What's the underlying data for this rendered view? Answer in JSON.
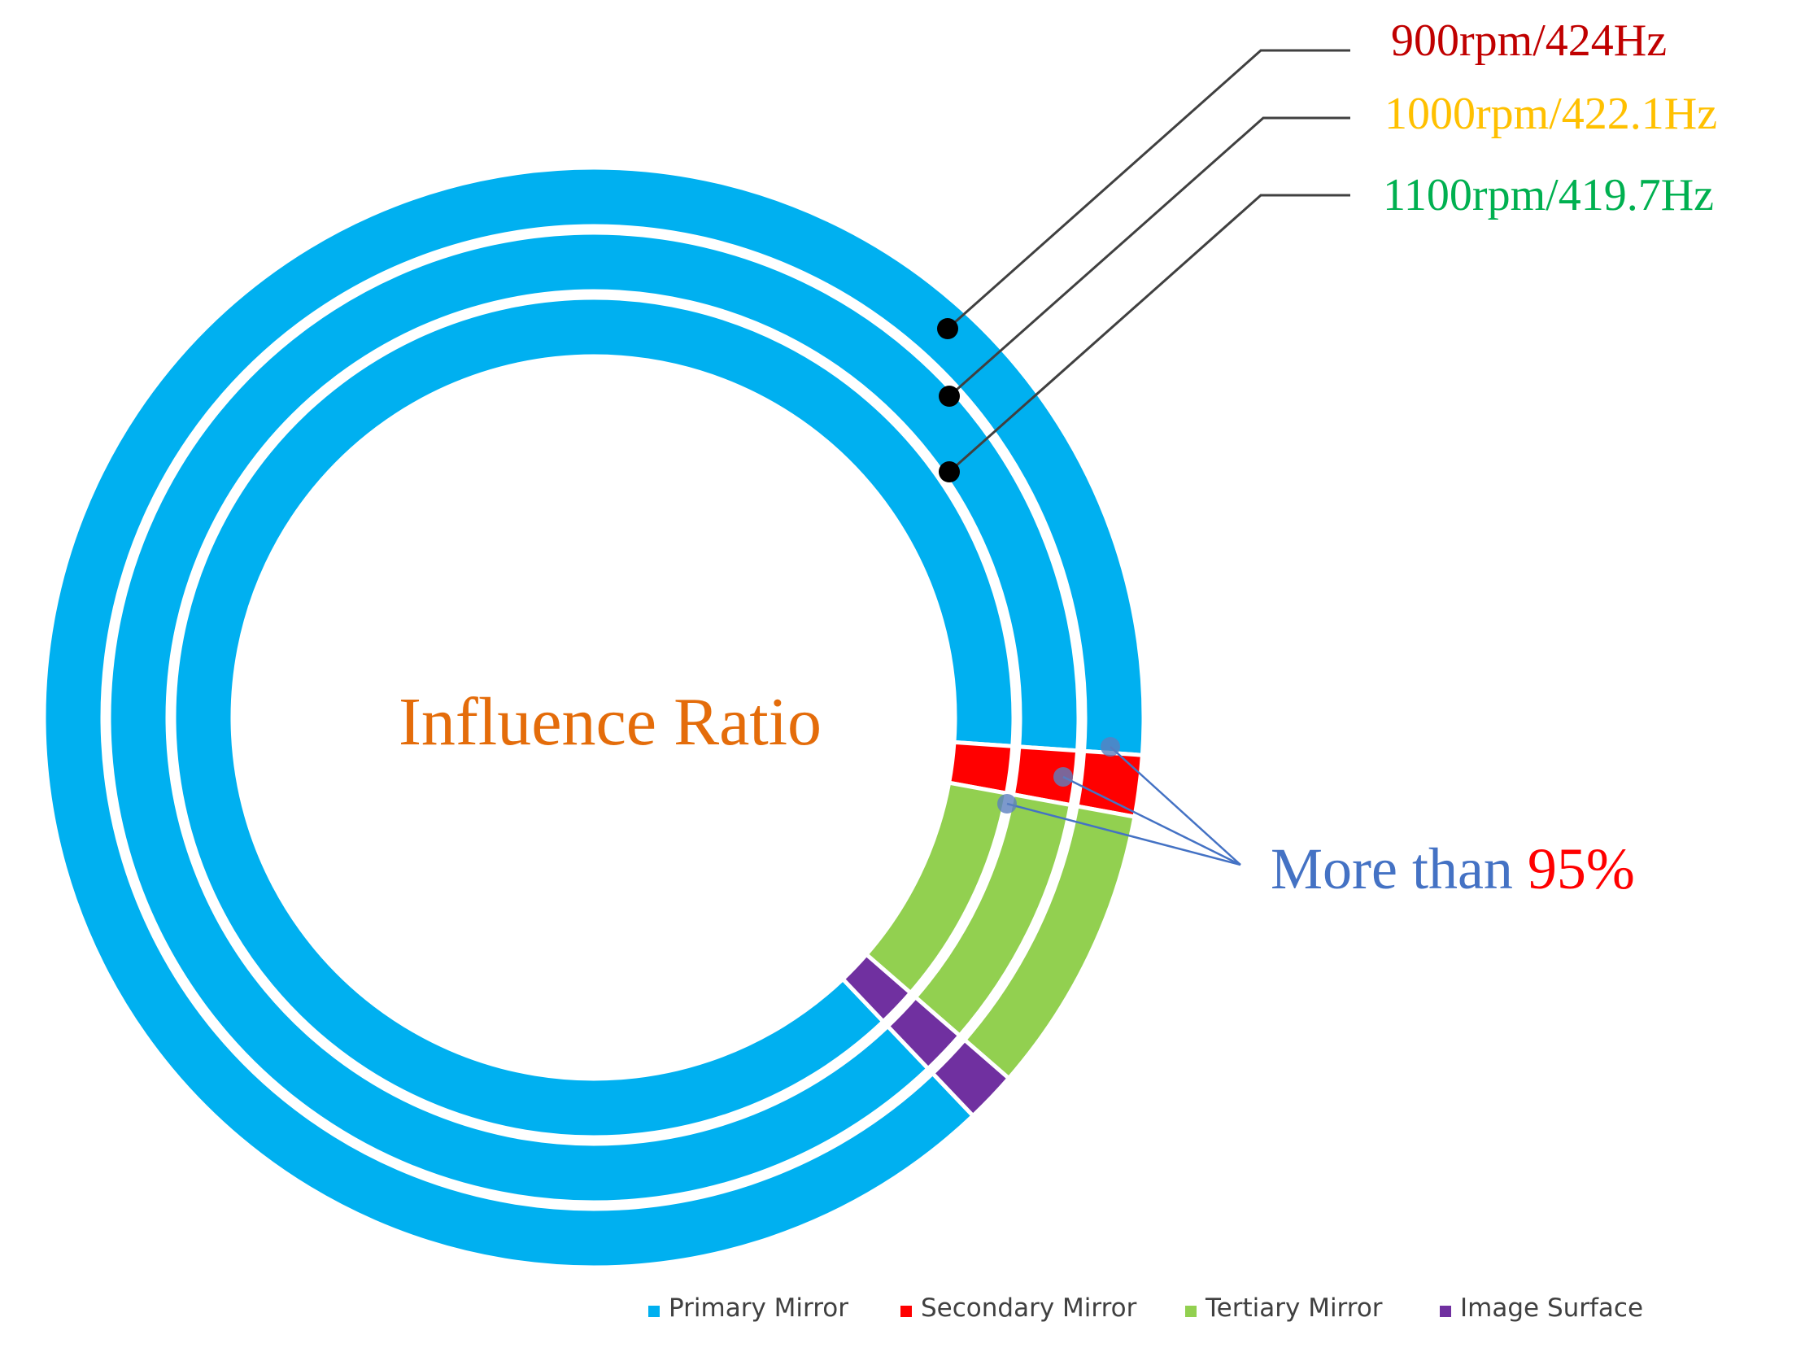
{
  "chart_data": {
    "type": "donut",
    "center_label": "Influence Ratio",
    "categories": [
      "Primary Mirror",
      "Secondary Mirror",
      "Tertiary Mirror",
      "Image Surface"
    ],
    "colors": {
      "Primary Mirror": "#00B0F0",
      "Secondary Mirror": "#FF0000",
      "Tertiary Mirror": "#92D050",
      "Image Surface": "#7030A0"
    },
    "series": [
      {
        "name": "900rpm/424Hz",
        "ring": "outer",
        "label_color": "#C00000",
        "values": [
          0.882,
          0.018,
          0.085,
          0.015
        ]
      },
      {
        "name": "1000rpm/422.1Hz",
        "ring": "middle",
        "label_color": "#FFC000",
        "values": [
          0.882,
          0.018,
          0.085,
          0.015
        ]
      },
      {
        "name": "1100rpm/419.7Hz",
        "ring": "inner",
        "label_color": "#00B050",
        "values": [
          0.882,
          0.018,
          0.085,
          0.015
        ]
      }
    ],
    "annotation": {
      "prefix": "More than ",
      "value": "95%",
      "prefix_color": "#4472C4",
      "value_color": "#FF0000"
    },
    "legend_position": "bottom"
  }
}
